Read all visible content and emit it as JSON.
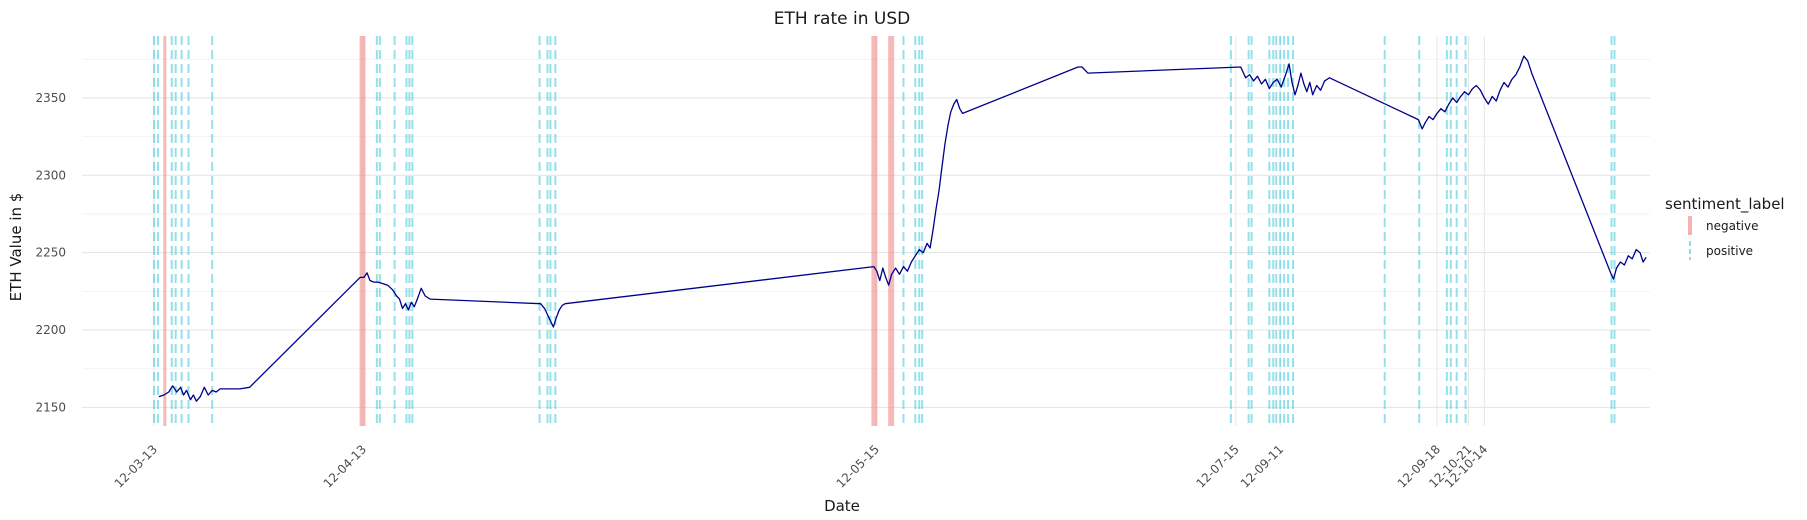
{
  "chart_data": {
    "type": "line",
    "title": "ETH rate in USD",
    "xlabel": "Date",
    "ylabel": "ETH Value in $",
    "ylim": [
      2138,
      2390
    ],
    "yticks": [
      2150,
      2200,
      2250,
      2300,
      2350
    ],
    "xticks": [
      {
        "pos": 3.3,
        "label": "12-03-13"
      },
      {
        "pos": 24.5,
        "label": "12-04-13"
      },
      {
        "pos": 76.5,
        "label": "12-05-15"
      },
      {
        "pos": 113.0,
        "label": "12-07-15"
      },
      {
        "pos": 117.5,
        "label": "12-09-11"
      },
      {
        "pos": 133.4,
        "label": "12-09-18"
      },
      {
        "pos": 136.6,
        "label": "12-10-21"
      },
      {
        "pos": 138.2,
        "label": "12-10-14"
      }
    ],
    "xlim": [
      -4,
      155
    ],
    "grid": true,
    "series": [
      {
        "color": "#00008b",
        "points": [
          [
            3.8,
            2157
          ],
          [
            4.3,
            2158
          ],
          [
            4.8,
            2160
          ],
          [
            5.2,
            2164
          ],
          [
            5.6,
            2160
          ],
          [
            6.0,
            2163
          ],
          [
            6.3,
            2158
          ],
          [
            6.6,
            2161
          ],
          [
            7.0,
            2155
          ],
          [
            7.3,
            2158
          ],
          [
            7.6,
            2154
          ],
          [
            8.0,
            2157
          ],
          [
            8.4,
            2163
          ],
          [
            8.8,
            2158
          ],
          [
            9.2,
            2161
          ],
          [
            9.6,
            2160
          ],
          [
            10.0,
            2162
          ],
          [
            12.0,
            2162
          ],
          [
            13.0,
            2163
          ],
          [
            24.2,
            2234
          ],
          [
            24.6,
            2234
          ],
          [
            24.9,
            2237
          ],
          [
            25.2,
            2232
          ],
          [
            25.6,
            2231
          ],
          [
            26.0,
            2231
          ],
          [
            26.5,
            2230
          ],
          [
            27.0,
            2229
          ],
          [
            27.5,
            2226
          ],
          [
            27.9,
            2222
          ],
          [
            28.2,
            2220
          ],
          [
            28.5,
            2214
          ],
          [
            28.8,
            2217
          ],
          [
            29.1,
            2213
          ],
          [
            29.4,
            2218
          ],
          [
            29.7,
            2215
          ],
          [
            30.0,
            2220
          ],
          [
            30.4,
            2227
          ],
          [
            30.8,
            2222
          ],
          [
            31.3,
            2220
          ],
          [
            42.5,
            2217
          ],
          [
            42.9,
            2214
          ],
          [
            43.2,
            2210
          ],
          [
            43.5,
            2206
          ],
          [
            43.8,
            2202
          ],
          [
            44.1,
            2208
          ],
          [
            44.4,
            2213
          ],
          [
            44.7,
            2216
          ],
          [
            45.0,
            2217
          ],
          [
            76.3,
            2241
          ],
          [
            76.6,
            2238
          ],
          [
            76.9,
            2232
          ],
          [
            77.2,
            2240
          ],
          [
            77.5,
            2234
          ],
          [
            77.8,
            2229
          ],
          [
            78.1,
            2236
          ],
          [
            78.5,
            2240
          ],
          [
            78.9,
            2236
          ],
          [
            79.3,
            2241
          ],
          [
            79.7,
            2238
          ],
          [
            80.1,
            2244
          ],
          [
            80.5,
            2248
          ],
          [
            80.9,
            2252
          ],
          [
            81.3,
            2250
          ],
          [
            81.7,
            2256
          ],
          [
            82.0,
            2253
          ],
          [
            82.3,
            2265
          ],
          [
            82.6,
            2278
          ],
          [
            82.9,
            2290
          ],
          [
            83.2,
            2305
          ],
          [
            83.5,
            2320
          ],
          [
            83.8,
            2332
          ],
          [
            84.1,
            2341
          ],
          [
            84.4,
            2346
          ],
          [
            84.7,
            2349
          ],
          [
            85.0,
            2343
          ],
          [
            85.3,
            2340
          ],
          [
            97.0,
            2370
          ],
          [
            97.4,
            2370
          ],
          [
            98.0,
            2366
          ],
          [
            113.5,
            2370
          ],
          [
            114.0,
            2363
          ],
          [
            114.4,
            2365
          ],
          [
            114.8,
            2361
          ],
          [
            115.2,
            2364
          ],
          [
            115.6,
            2359
          ],
          [
            116.0,
            2362
          ],
          [
            116.4,
            2356
          ],
          [
            116.8,
            2360
          ],
          [
            117.2,
            2362
          ],
          [
            117.6,
            2357
          ],
          [
            118.0,
            2364
          ],
          [
            118.4,
            2372
          ],
          [
            118.7,
            2360
          ],
          [
            119.0,
            2352
          ],
          [
            119.3,
            2358
          ],
          [
            119.6,
            2366
          ],
          [
            119.9,
            2359
          ],
          [
            120.2,
            2354
          ],
          [
            120.5,
            2360
          ],
          [
            120.8,
            2352
          ],
          [
            121.2,
            2358
          ],
          [
            121.6,
            2355
          ],
          [
            122.0,
            2361
          ],
          [
            122.5,
            2363
          ],
          [
            131.5,
            2336
          ],
          [
            131.9,
            2330
          ],
          [
            132.2,
            2334
          ],
          [
            132.6,
            2338
          ],
          [
            133.0,
            2336
          ],
          [
            133.4,
            2340
          ],
          [
            133.8,
            2343
          ],
          [
            134.2,
            2341
          ],
          [
            134.6,
            2346
          ],
          [
            135.0,
            2350
          ],
          [
            135.4,
            2347
          ],
          [
            135.8,
            2351
          ],
          [
            136.2,
            2354
          ],
          [
            136.6,
            2352
          ],
          [
            137.0,
            2356
          ],
          [
            137.4,
            2358
          ],
          [
            137.8,
            2355
          ],
          [
            138.2,
            2350
          ],
          [
            138.6,
            2346
          ],
          [
            139.0,
            2351
          ],
          [
            139.4,
            2348
          ],
          [
            139.8,
            2355
          ],
          [
            140.2,
            2360
          ],
          [
            140.6,
            2357
          ],
          [
            141.0,
            2362
          ],
          [
            141.4,
            2365
          ],
          [
            141.8,
            2370
          ],
          [
            142.2,
            2377
          ],
          [
            142.6,
            2374
          ],
          [
            143.0,
            2366
          ],
          [
            151.0,
            2237
          ],
          [
            151.3,
            2233
          ],
          [
            151.6,
            2240
          ],
          [
            152.0,
            2244
          ],
          [
            152.4,
            2242
          ],
          [
            152.8,
            2248
          ],
          [
            153.2,
            2246
          ],
          [
            153.6,
            2252
          ],
          [
            154.0,
            2250
          ],
          [
            154.3,
            2244
          ],
          [
            154.6,
            2247
          ]
        ]
      }
    ],
    "sentiment_lines": [
      {
        "x": 3.3,
        "s": "positive"
      },
      {
        "x": 3.7,
        "s": "positive"
      },
      {
        "x": 4.4,
        "s": "negative"
      },
      {
        "x": 5.1,
        "s": "positive"
      },
      {
        "x": 5.5,
        "s": "positive"
      },
      {
        "x": 6.1,
        "s": "positive"
      },
      {
        "x": 6.8,
        "s": "positive"
      },
      {
        "x": 9.2,
        "s": "positive"
      },
      {
        "x": 24.3,
        "s": "negative"
      },
      {
        "x": 24.6,
        "s": "negative"
      },
      {
        "x": 25.9,
        "s": "positive"
      },
      {
        "x": 26.2,
        "s": "positive"
      },
      {
        "x": 27.7,
        "s": "positive"
      },
      {
        "x": 28.9,
        "s": "positive"
      },
      {
        "x": 29.2,
        "s": "positive"
      },
      {
        "x": 29.5,
        "s": "positive"
      },
      {
        "x": 42.4,
        "s": "positive"
      },
      {
        "x": 43.2,
        "s": "positive"
      },
      {
        "x": 43.5,
        "s": "positive"
      },
      {
        "x": 44.0,
        "s": "positive"
      },
      {
        "x": 76.2,
        "s": "negative"
      },
      {
        "x": 76.5,
        "s": "negative"
      },
      {
        "x": 77.9,
        "s": "negative"
      },
      {
        "x": 78.2,
        "s": "negative"
      },
      {
        "x": 79.3,
        "s": "positive"
      },
      {
        "x": 80.5,
        "s": "positive"
      },
      {
        "x": 80.9,
        "s": "positive"
      },
      {
        "x": 81.2,
        "s": "positive"
      },
      {
        "x": 112.5,
        "s": "positive"
      },
      {
        "x": 114.3,
        "s": "positive"
      },
      {
        "x": 114.6,
        "s": "positive"
      },
      {
        "x": 116.4,
        "s": "positive"
      },
      {
        "x": 116.8,
        "s": "positive"
      },
      {
        "x": 117.1,
        "s": "positive"
      },
      {
        "x": 117.5,
        "s": "positive"
      },
      {
        "x": 117.9,
        "s": "positive"
      },
      {
        "x": 118.3,
        "s": "positive"
      },
      {
        "x": 118.8,
        "s": "positive"
      },
      {
        "x": 128.1,
        "s": "positive"
      },
      {
        "x": 131.6,
        "s": "positive"
      },
      {
        "x": 134.4,
        "s": "positive"
      },
      {
        "x": 134.8,
        "s": "positive"
      },
      {
        "x": 135.4,
        "s": "positive"
      },
      {
        "x": 136.3,
        "s": "positive"
      },
      {
        "x": 151.1,
        "s": "positive"
      },
      {
        "x": 151.4,
        "s": "positive"
      }
    ],
    "legend": {
      "title": "sentiment_label",
      "placement": "right",
      "entries": [
        {
          "label": "negative",
          "color": "#f08080"
        },
        {
          "label": "positive",
          "color": "#40c8d8"
        }
      ]
    }
  }
}
